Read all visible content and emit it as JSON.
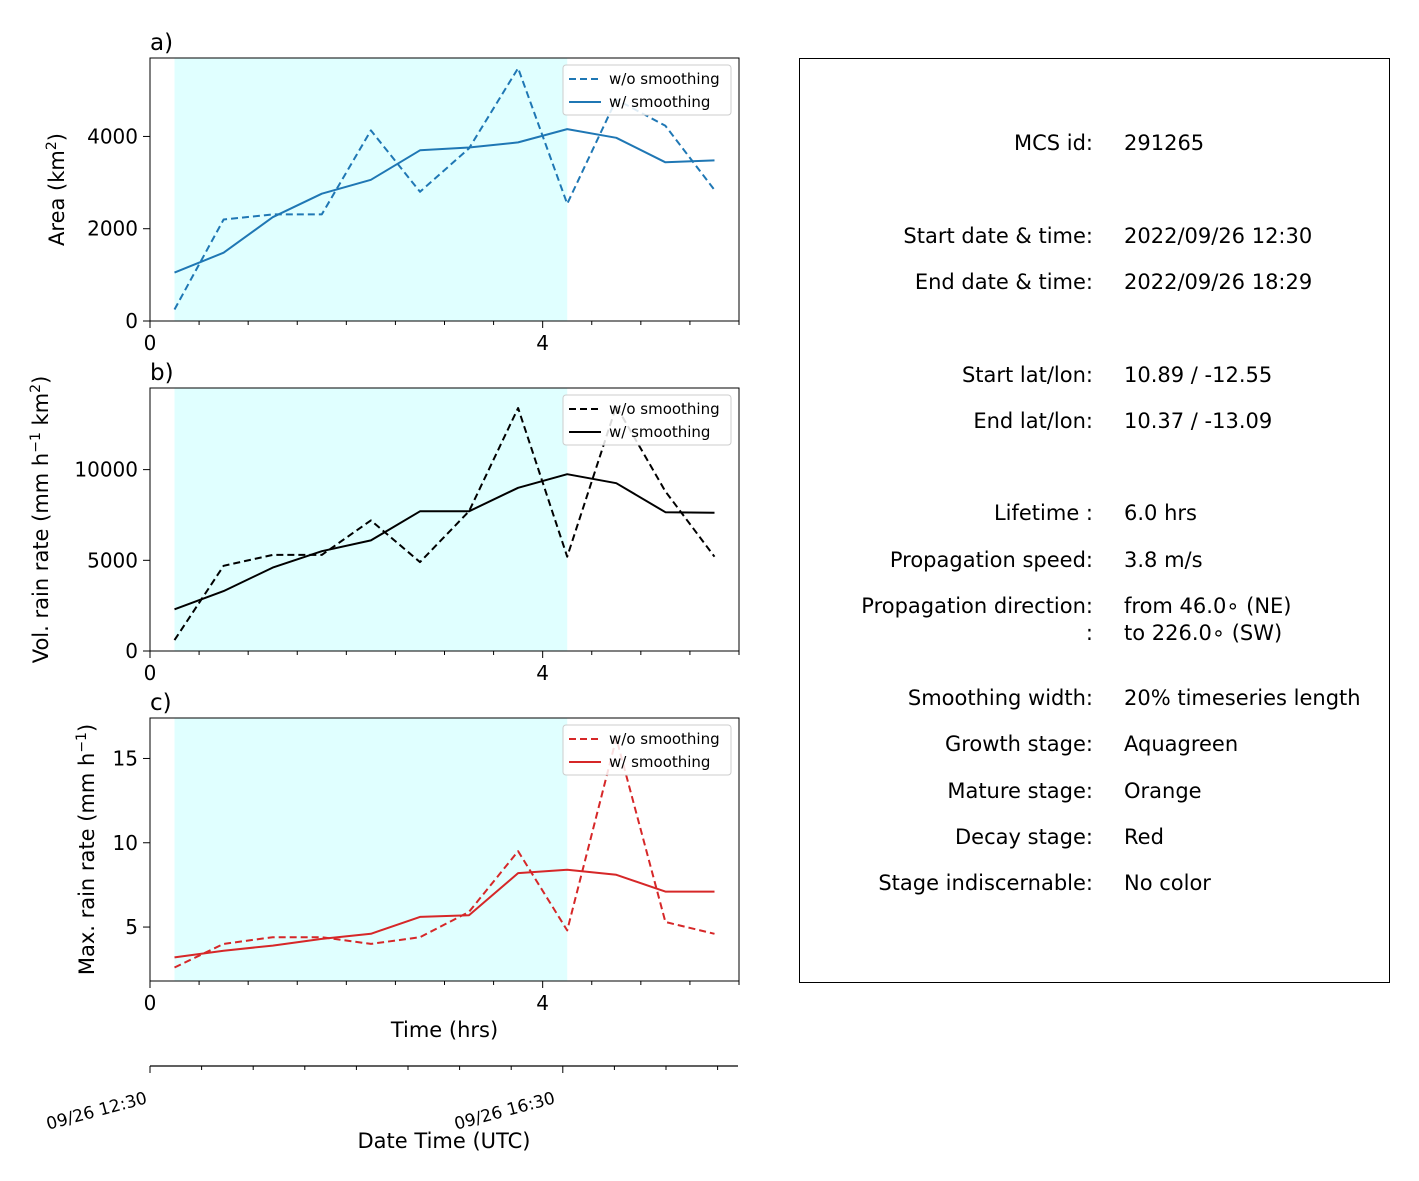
{
  "chart_data": [
    {
      "type": "line",
      "panel": "a)",
      "ylabel_main": "Area  (km",
      "ylabel_sup": "2",
      "ylabel_tail": ")",
      "xlim": [
        0,
        6
      ],
      "ylim": [
        0,
        5700
      ],
      "xticks": [
        "0",
        "4"
      ],
      "yticks": [
        0,
        2000,
        4000
      ],
      "shaded_hours": [
        0.25,
        4.25
      ],
      "shade_color": "#e0ffff",
      "color": "#1f77b4",
      "x": [
        0.25,
        0.75,
        1.25,
        1.75,
        2.25,
        2.75,
        3.25,
        3.75,
        4.25,
        4.75,
        5.25,
        5.75
      ],
      "series": [
        {
          "name": "w/o smoothing",
          "style": "dashed",
          "values": [
            250,
            2200,
            2310,
            2310,
            4130,
            2800,
            3740,
            5480,
            2540,
            4800,
            4230,
            2840
          ]
        },
        {
          "name": "w/ smoothing",
          "style": "solid",
          "values": [
            1050,
            1480,
            2250,
            2760,
            3060,
            3700,
            3760,
            3870,
            4160,
            3970,
            3440,
            3480
          ]
        }
      ]
    },
    {
      "type": "line",
      "panel": "b)",
      "ylabel_main": "Vol. rain rate (mm h",
      "ylabel_sup": "−1",
      "ylabel_mid": " km",
      "ylabel_sup2": "2",
      "ylabel_tail": ")",
      "xlim": [
        0,
        6
      ],
      "ylim": [
        0,
        14500
      ],
      "xticks": [
        "0",
        "4"
      ],
      "yticks": [
        0,
        5000,
        10000
      ],
      "shaded_hours": [
        0.25,
        4.25
      ],
      "shade_color": "#e0ffff",
      "color": "#000000",
      "x": [
        0.25,
        0.75,
        1.25,
        1.75,
        2.25,
        2.75,
        3.25,
        3.75,
        4.25,
        4.75,
        5.25,
        5.75
      ],
      "series": [
        {
          "name": "w/o smoothing",
          "style": "dashed",
          "values": [
            600,
            4700,
            5300,
            5300,
            7200,
            4900,
            7700,
            13400,
            5200,
            13500,
            8800,
            5200
          ]
        },
        {
          "name": "w/ smoothing",
          "style": "solid",
          "values": [
            2300,
            3300,
            4600,
            5500,
            6100,
            7700,
            7700,
            9000,
            9750,
            9250,
            7650,
            7620
          ]
        }
      ]
    },
    {
      "type": "line",
      "panel": "c)",
      "ylabel_main": "Max. rain rate  (mm h",
      "ylabel_sup": "−1",
      "ylabel_tail": ")",
      "xlabel": "Time (hrs)",
      "xlim": [
        0,
        6
      ],
      "ylim": [
        1.8,
        17.4
      ],
      "xticks": [
        "0",
        "4"
      ],
      "yticks": [
        5,
        10,
        15
      ],
      "shaded_hours": [
        0.25,
        4.25
      ],
      "shade_color": "#e0ffff",
      "color": "#d62728",
      "x": [
        0.25,
        0.75,
        1.25,
        1.75,
        2.25,
        2.75,
        3.25,
        3.75,
        4.25,
        4.75,
        5.25,
        5.75
      ],
      "series": [
        {
          "name": "w/o smoothing",
          "style": "dashed",
          "values": [
            2.6,
            4.0,
            4.4,
            4.4,
            4.0,
            4.4,
            5.9,
            9.5,
            4.8,
            16.2,
            5.3,
            4.6
          ]
        },
        {
          "name": "w/ smoothing",
          "style": "solid",
          "values": [
            3.2,
            3.6,
            3.9,
            4.3,
            4.6,
            5.6,
            5.7,
            8.2,
            8.4,
            8.1,
            7.1,
            7.1
          ]
        }
      ]
    }
  ],
  "date_axis": {
    "label": "Date Time (UTC)",
    "ticks": [
      "09/26 12:30",
      "09/26 16:30"
    ]
  },
  "info": {
    "rows": [
      {
        "label": "MCS id:",
        "value": "291265"
      },
      {
        "label": "Start date & time:",
        "value": "2022/09/26 12:30"
      },
      {
        "label": "End date & time:",
        "value": "2022/09/26 18:29"
      },
      {
        "label": "Start lat/lon:",
        "value": "10.89 / -12.55"
      },
      {
        "label": "End lat/lon:",
        "value": "10.37 / -13.09"
      },
      {
        "label": "Lifetime :",
        "value": "6.0 hrs"
      },
      {
        "label": "Propagation speed:",
        "value": "3.8 m/s"
      },
      {
        "label": "Propagation direction:",
        "value": "from  46.0∘ (NE)"
      },
      {
        "label": ":",
        "value": "to   226.0∘ (SW)"
      },
      {
        "label": "Smoothing width:",
        "value": "20% timeseries length"
      },
      {
        "label": "Growth stage:",
        "value": "Aquagreen"
      },
      {
        "label": "Mature stage:",
        "value": "Orange"
      },
      {
        "label": "Decay stage:",
        "value": "Red"
      },
      {
        "label": "Stage indiscernable:",
        "value": "No color"
      }
    ]
  }
}
